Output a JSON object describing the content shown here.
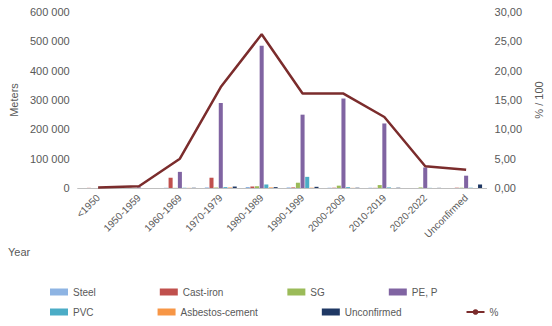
{
  "chart_data": {
    "type": "bar",
    "x_label": "Year",
    "y_label": "Meters",
    "y2_label": "% / 100",
    "categories": [
      "<1950",
      "1950-1959",
      "1960-1969",
      "1970-1979",
      "1980-1989",
      "1990-1999",
      "2000-2009",
      "2010-2019",
      "2020-2022",
      "Unconfirmed"
    ],
    "series": [
      {
        "name": "Steel",
        "color": "#8eb4e3",
        "values": [
          0,
          0,
          1000,
          2000,
          3000,
          2000,
          1000,
          1000,
          0,
          0
        ]
      },
      {
        "name": "Cast-iron",
        "color": "#c0504d",
        "values": [
          500,
          1000,
          35000,
          35000,
          5000,
          2000,
          1000,
          500,
          0,
          1000
        ]
      },
      {
        "name": "SG",
        "color": "#9bbb59",
        "values": [
          0,
          0,
          500,
          2000,
          6000,
          18000,
          8000,
          10000,
          2000,
          1000
        ]
      },
      {
        "name": "PE, P",
        "color": "#8064a2",
        "values": [
          0,
          2000,
          55000,
          290000,
          485000,
          250000,
          305000,
          220000,
          70000,
          42000
        ]
      },
      {
        "name": "PVC",
        "color": "#4bacc6",
        "values": [
          0,
          0,
          500,
          3000,
          12000,
          38000,
          3000,
          2000,
          500,
          1000
        ]
      },
      {
        "name": "Asbestos-cement",
        "color": "#f79646",
        "values": [
          0,
          0,
          500,
          2000,
          2000,
          1000,
          500,
          0,
          0,
          0
        ]
      },
      {
        "name": "Unconfirmed",
        "color": "#1f3864",
        "values": [
          0,
          0,
          1000,
          5000,
          3000,
          4000,
          1000,
          1000,
          500,
          12000
        ]
      },
      {
        "name": "%",
        "type": "line",
        "axis": "y2",
        "color": "#7b2c2c",
        "marker": "none",
        "values": [
          0.1,
          0.3,
          5.0,
          17.2,
          26.2,
          16.1,
          16.1,
          12.1,
          3.7,
          3.1
        ]
      }
    ],
    "ylim": [
      0,
      600000
    ],
    "yticks": [
      0,
      {
        "value": 100000,
        "label": "100 000"
      },
      {
        "value": 200000,
        "label": "200 000"
      },
      {
        "value": 300000,
        "label": "300 000"
      },
      {
        "value": 400000,
        "label": "400 000"
      },
      {
        "value": 500000,
        "label": "500 000"
      },
      {
        "value": 600000,
        "label": "600 000"
      }
    ],
    "y2lim": [
      0,
      30
    ],
    "y2ticks": [
      {
        "value": 0,
        "label": "0,00"
      },
      {
        "value": 5,
        "label": "5,00"
      },
      {
        "value": 10,
        "label": "10,00"
      },
      {
        "value": 15,
        "label": "15,00"
      },
      {
        "value": 20,
        "label": "20,00"
      },
      {
        "value": 25,
        "label": "25,00"
      },
      {
        "value": 30,
        "label": "30,00"
      }
    ],
    "grid": false,
    "legend": "bottom"
  }
}
